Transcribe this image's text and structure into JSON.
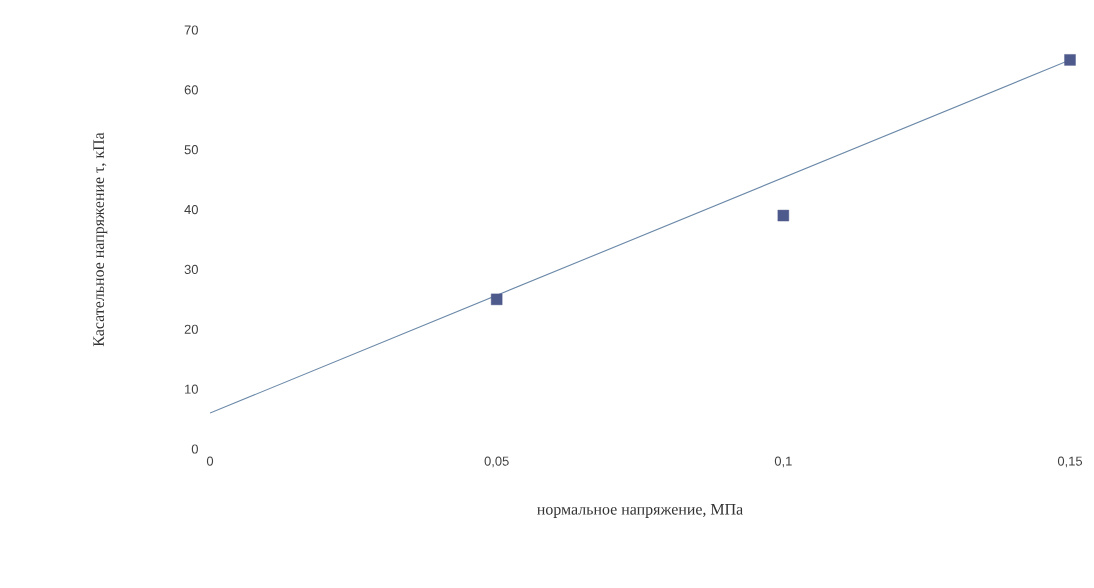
{
  "chart_data": {
    "type": "scatter",
    "xlabel": "нормальное напряжение, МПа",
    "ylabel": "Касательное напряжение τ, кПа",
    "xlim": [
      0,
      0.15
    ],
    "ylim": [
      0,
      70
    ],
    "xticks": [
      {
        "value": 0,
        "label": "0"
      },
      {
        "value": 0.05,
        "label": "0,05"
      },
      {
        "value": 0.1,
        "label": "0,1"
      },
      {
        "value": 0.15,
        "label": "0,15"
      }
    ],
    "yticks": [
      0,
      10,
      20,
      30,
      40,
      50,
      60,
      70
    ],
    "grid": false,
    "series": [
      {
        "color": "#4f5a8c",
        "marker": "square",
        "x": [
          0.05,
          0.1,
          0.15
        ],
        "values": [
          25,
          39,
          65
        ]
      },
      {
        "type": "line",
        "color": "#6a88a8",
        "marker": "none",
        "line_style": "solid",
        "x": [
          0,
          0.15
        ],
        "values": [
          6,
          65
        ]
      }
    ]
  }
}
